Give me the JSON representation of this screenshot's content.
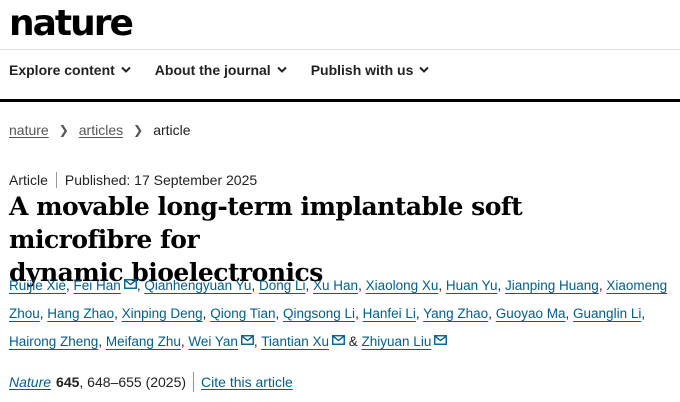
{
  "header": {
    "logo": "nature"
  },
  "nav": {
    "items": [
      {
        "label": "Explore content"
      },
      {
        "label": "About the journal"
      },
      {
        "label": "Publish with us"
      }
    ]
  },
  "breadcrumb": {
    "items": [
      "nature",
      "articles"
    ],
    "current": "article"
  },
  "article": {
    "type": "Article",
    "published": "Published: 17 September 2025",
    "title_line1": "A movable long-term implantable soft microfibre for",
    "title_line2": "dynamic bioelectronics",
    "authors": [
      "Ruijie Xie",
      "Fei Han",
      "Qianhengyuan Yu",
      "Dong Li",
      "Xu Han",
      "Xiaolong Xu",
      "Huan Yu",
      "Jianping Huang",
      "Xiaomeng Zhou",
      "Hang Zhao",
      "Xinping Deng",
      "Qiong Tian",
      "Qingsong Li",
      "Hanfei Li",
      "Yang Zhao",
      "Guoyao Ma",
      "Guanglin Li",
      "Hairong Zheng",
      "Meifang Zhu",
      "Wei Yan",
      "Tiantian Xu",
      "Zhiyuan Liu"
    ],
    "ampersand": "&",
    "citation": {
      "journal": "Nature",
      "volume": "645",
      "pages_year": ", 648–655 (2025)",
      "cite_link": "Cite this article"
    }
  },
  "colors": {
    "link": "#025e8d",
    "text": "#222222",
    "nav_bar": "#000000"
  },
  "icons": {
    "dropdown": "chevron-down-icon",
    "email": "mail-icon",
    "breadcrumb_separator": "chevron-right-icon"
  }
}
